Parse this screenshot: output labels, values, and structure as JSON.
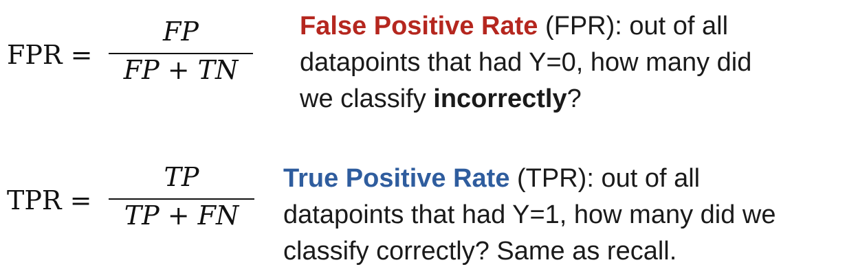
{
  "fpr": {
    "formula": {
      "lhs": "FPR =",
      "numerator": "FP",
      "denominator": "FP + TN"
    },
    "description": {
      "term": "False Positive Rate",
      "line1_rest": " (FPR): out of all",
      "line2": "datapoints that had Y=0, how many did",
      "line3_prefix": "we classify ",
      "line3_emphasis": "incorrectly",
      "line3_suffix": "?"
    }
  },
  "tpr": {
    "formula": {
      "lhs": "TPR =",
      "numerator": "TP",
      "denominator": "TP + FN"
    },
    "description": {
      "term": "True Positive Rate",
      "line1_rest": " (TPR): out of all",
      "line2": "datapoints that had Y=1, how many did we",
      "line3": "classify correctly? Same as recall."
    }
  },
  "colors": {
    "fpr_term": "#b5271f",
    "tpr_term": "#2f5d9e",
    "text": "#1a1a1a"
  }
}
